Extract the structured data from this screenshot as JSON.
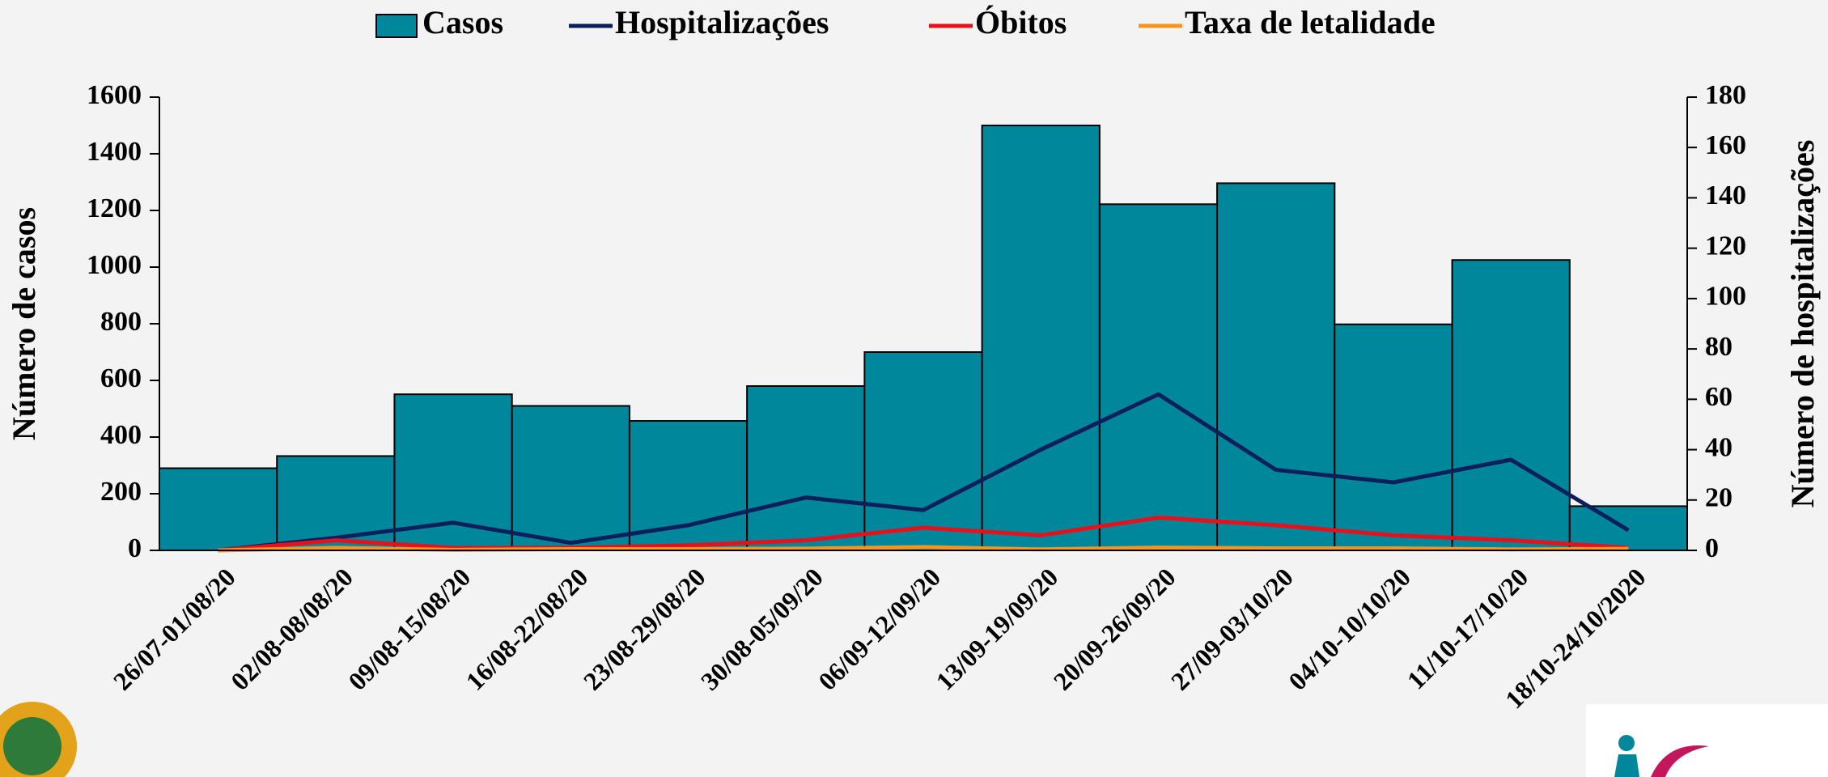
{
  "chart_data": {
    "type": "bar",
    "categories": [
      "26/07-01/08/20",
      "02/08-08/08/20",
      "09/08-15/08/20",
      "16/08-22/08/20",
      "23/08-29/08/20",
      "30/08-05/09/20",
      "06/09-12/09/20",
      "13/09-19/09/20",
      "20/09-26/09/20",
      "27/09-03/10/20",
      "04/10-10/10/20",
      "11/10-17/10/20",
      "18/10-24/10/2020"
    ],
    "series": [
      {
        "name": "Casos",
        "type": "bar",
        "color": "#00879b",
        "values": [
          290,
          333,
          551,
          510,
          457,
          580,
          700,
          1500,
          1222,
          1296,
          798,
          1025,
          156
        ]
      },
      {
        "name": "Hospitalizações",
        "type": "line",
        "axis": "y2",
        "color": "#0b1f5c",
        "values": [
          0,
          5,
          11,
          3,
          10,
          21,
          16,
          40,
          62,
          32,
          27,
          36,
          8
        ]
      },
      {
        "name": "Óbitos",
        "type": "line",
        "axis": "y2",
        "color": "#e8101a",
        "values": [
          0,
          4,
          1,
          1,
          2,
          4,
          9,
          6,
          13,
          10,
          6,
          4,
          1
        ]
      },
      {
        "name": "Taxa de letalidade",
        "type": "line",
        "axis": "y2",
        "color": "#f7941d",
        "values": [
          0,
          1,
          0.2,
          0.5,
          0.5,
          0.7,
          1.3,
          0.4,
          1.1,
          0.8,
          0.8,
          0.4,
          0.6
        ]
      }
    ],
    "ylabel": "Número de casos",
    "y2label": "Número de hospitalizações",
    "ylim": [
      0,
      1600
    ],
    "yticks": [
      0,
      200,
      400,
      600,
      800,
      1000,
      1200,
      1400,
      1600
    ],
    "y2lim": [
      0,
      180
    ],
    "y2ticks": [
      0,
      20,
      40,
      60,
      80,
      100,
      120,
      140,
      160,
      180
    ],
    "legend": "top"
  }
}
